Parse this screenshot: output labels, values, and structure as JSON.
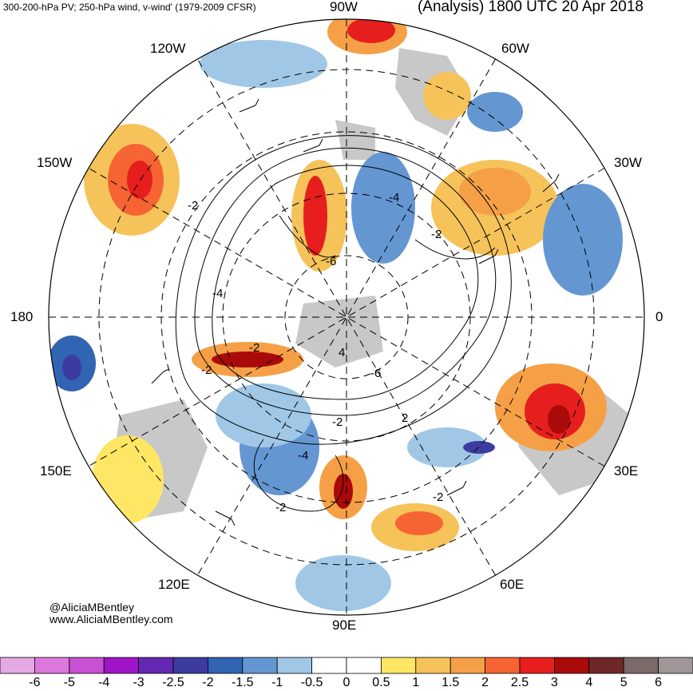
{
  "header": {
    "left_title": "300-200-hPa PV; 250-hPa wind, v-wind' (1979-2009 CFSR)",
    "right_title": "(Analysis) 1800 UTC 20 Apr 2018"
  },
  "credits": {
    "line1": "@AliciaMBentley",
    "line2": "www.AliciaMBentley.com"
  },
  "longitude_labels": {
    "l90w": "90W",
    "l60w": "60W",
    "l30w": "30W",
    "l0": "0",
    "l30e": "30E",
    "l60e": "60E",
    "l90e": "90E",
    "l120e": "120E",
    "l150e": "150E",
    "l180": "180",
    "l150w": "150W",
    "l120w": "120W"
  },
  "contour_labels": [
    "-2",
    "-4",
    "-6",
    "-2",
    "-2",
    "-4",
    "-2",
    "-6",
    "-2",
    "-4",
    "-2",
    "-2",
    "2",
    "4"
  ],
  "colorbar": {
    "tick_labels": [
      "-6",
      "-5",
      "-4",
      "-3",
      "-2.5",
      "-2",
      "-1.5",
      "-1",
      "-0.5",
      "0",
      "0.5",
      "1",
      "1.5",
      "2",
      "2.5",
      "3",
      "4",
      "5",
      "6"
    ],
    "colors": [
      "#e4a8e4",
      "#dc78dc",
      "#c850d2",
      "#a014c8",
      "#6428b4",
      "#3c3ca0",
      "#3264b4",
      "#6496d2",
      "#a0c8e6",
      "#ffffff",
      "#ffffff",
      "#ffe664",
      "#f5c35a",
      "#f5a046",
      "#f56432",
      "#e61e1e",
      "#aa0a0a",
      "#6e2828",
      "#7a6a6a",
      "#a09696"
    ]
  }
}
